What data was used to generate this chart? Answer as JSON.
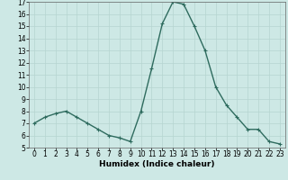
{
  "x": [
    0,
    1,
    2,
    3,
    4,
    5,
    6,
    7,
    8,
    9,
    10,
    11,
    12,
    13,
    14,
    15,
    16,
    17,
    18,
    19,
    20,
    21,
    22,
    23
  ],
  "y": [
    7.0,
    7.5,
    7.8,
    8.0,
    7.5,
    7.0,
    6.5,
    6.0,
    5.8,
    5.5,
    8.0,
    11.5,
    15.2,
    17.0,
    16.8,
    15.0,
    13.0,
    10.0,
    8.5,
    7.5,
    6.5,
    6.5,
    5.5,
    5.3
  ],
  "xlabel": "Humidex (Indice chaleur)",
  "xlim": [
    -0.5,
    23.5
  ],
  "ylim": [
    5,
    17
  ],
  "yticks": [
    5,
    6,
    7,
    8,
    9,
    10,
    11,
    12,
    13,
    14,
    15,
    16,
    17
  ],
  "xticks": [
    0,
    1,
    2,
    3,
    4,
    5,
    6,
    7,
    8,
    9,
    10,
    11,
    12,
    13,
    14,
    15,
    16,
    17,
    18,
    19,
    20,
    21,
    22,
    23
  ],
  "line_color": "#2e6b5e",
  "bg_color": "#cde8e5",
  "grid_color": "#b5d5d0",
  "marker": "+",
  "marker_size": 3,
  "line_width": 1.0,
  "tick_fontsize": 5.5,
  "xlabel_fontsize": 6.5
}
